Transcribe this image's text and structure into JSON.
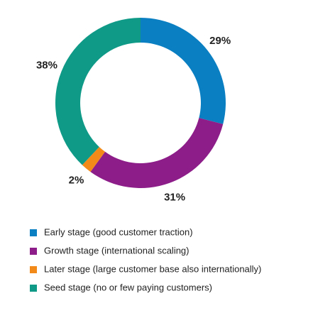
{
  "chart_data": {
    "type": "donut",
    "categories": [
      "Early stage (good customer traction)",
      "Growth stage (international scaling)",
      "Later stage (large customer base also internationally)",
      "Seed stage (no or few paying customers)"
    ],
    "values": [
      29,
      31,
      2,
      38
    ],
    "value_labels": [
      "29%",
      "31%",
      "2%",
      "38%"
    ],
    "colors": [
      "#0a7fc2",
      "#8c1d89",
      "#f28a1a",
      "#0f9a87"
    ]
  }
}
